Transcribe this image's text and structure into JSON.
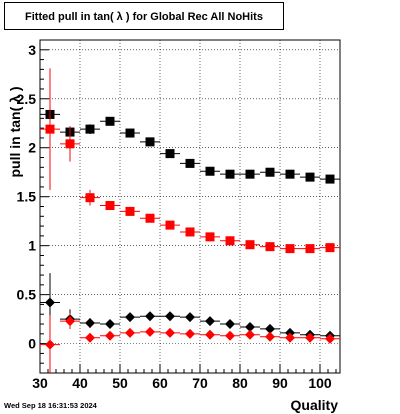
{
  "footer_text": "Wed Sep 18 16:31:53 2024",
  "chart_data": {
    "type": "scatter",
    "title": "Fitted pull in tan( λ ) for Global Rec All NoHits",
    "xlabel": "Quality",
    "ylabel": "pull in tan( λ )",
    "xlim": [
      30,
      105
    ],
    "ylim": [
      -0.3,
      3.1
    ],
    "xticks": [
      30,
      40,
      50,
      60,
      70,
      80,
      90,
      100
    ],
    "yticks": [
      0,
      0.5,
      1,
      1.5,
      2,
      2.5,
      3
    ],
    "ytick_labels": [
      "0",
      "0.5",
      "1",
      "1.5",
      "2",
      "2.5",
      "3"
    ],
    "grid": true,
    "x": [
      32.5,
      37.5,
      42.5,
      47.5,
      52.5,
      57.5,
      62.5,
      67.5,
      72.5,
      77.5,
      82.5,
      87.5,
      92.5,
      97.5,
      102.5
    ],
    "series": [
      {
        "color": "#000000",
        "marker": "square",
        "values": [
          2.34,
          2.16,
          2.19,
          2.27,
          2.15,
          2.06,
          1.94,
          1.84,
          1.76,
          1.73,
          1.73,
          1.75,
          1.73,
          1.7,
          1.68
        ],
        "errors": [
          0.08,
          0.06,
          0.05,
          0.03,
          0.02,
          0.02,
          0.02,
          0.02,
          0.02,
          0.02,
          0.01,
          0.01,
          0.01,
          0.01,
          0.01
        ]
      },
      {
        "color": "#ff0000",
        "marker": "square",
        "values": [
          2.19,
          2.04,
          1.49,
          1.41,
          1.35,
          1.28,
          1.21,
          1.14,
          1.09,
          1.05,
          1.01,
          0.99,
          0.97,
          0.97,
          0.98
        ],
        "errors": [
          0.62,
          0.18,
          0.08,
          0.04,
          0.03,
          0.02,
          0.02,
          0.02,
          0.02,
          0.01,
          0.01,
          0.01,
          0.01,
          0.01,
          0.01
        ]
      },
      {
        "color": "#000000",
        "marker": "diamond",
        "values": [
          0.42,
          0.25,
          0.21,
          0.2,
          0.27,
          0.28,
          0.28,
          0.27,
          0.23,
          0.2,
          0.17,
          0.15,
          0.11,
          0.09,
          0.08
        ],
        "errors": [
          0.3,
          0.1,
          0.05,
          0.03,
          0.02,
          0.02,
          0.02,
          0.02,
          0.02,
          0.02,
          0.02,
          0.02,
          0.01,
          0.01,
          0.01
        ]
      },
      {
        "color": "#ff0000",
        "marker": "diamond",
        "values": [
          -0.01,
          0.23,
          0.06,
          0.08,
          0.11,
          0.12,
          0.11,
          0.1,
          0.09,
          0.08,
          0.09,
          0.07,
          0.06,
          0.06,
          0.05
        ],
        "errors": [
          0.3,
          0.08,
          0.04,
          0.03,
          0.02,
          0.02,
          0.02,
          0.02,
          0.02,
          0.02,
          0.02,
          0.02,
          0.01,
          0.01,
          0.01
        ]
      }
    ]
  }
}
